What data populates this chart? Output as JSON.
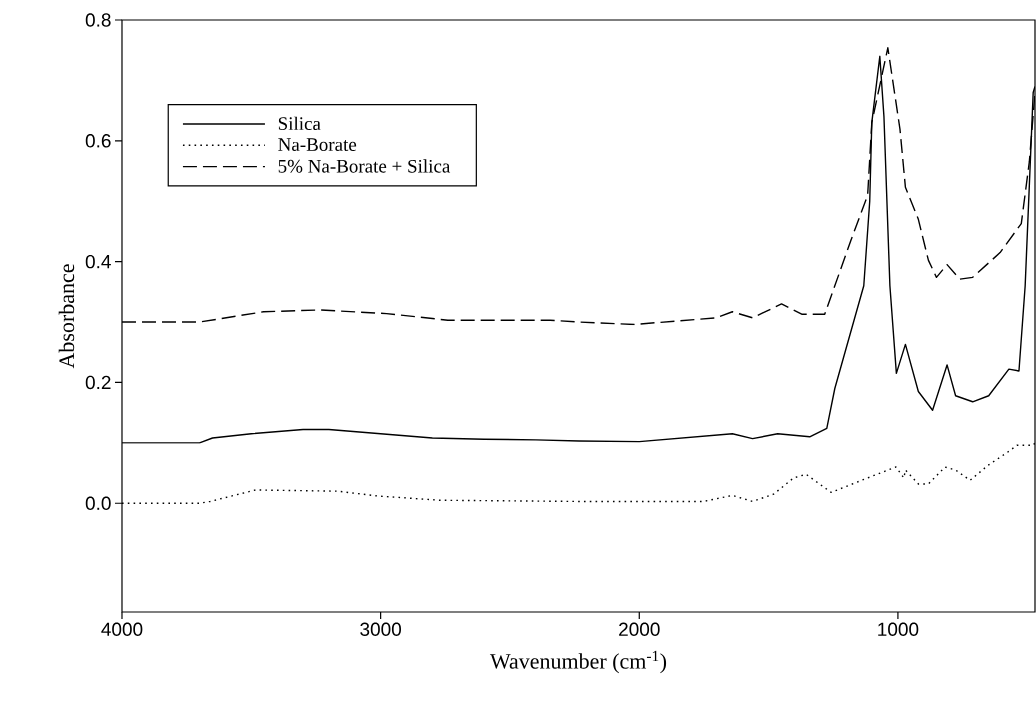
{
  "chart_data": {
    "type": "line",
    "xlabel": "Wavenumber (cm$^{-1}$)",
    "ylabel": "Absorbance",
    "xlim": [
      4000,
      470
    ],
    "ylim": [
      -0.18,
      0.8
    ],
    "xticks": [
      4000,
      3000,
      2000,
      1000
    ],
    "yticks": [
      {
        "value": 0,
        "label": "0.0"
      },
      {
        "value": 0.2,
        "label": "0.2"
      },
      {
        "value": 0.4,
        "label": "0.4"
      },
      {
        "value": 0.6,
        "label": "0.6"
      },
      {
        "value": 0.8,
        "label": "0.8"
      }
    ],
    "grid": false,
    "legend": "top left",
    "marker": "none",
    "series": [
      {
        "name": "Silica",
        "color": "#000000",
        "line_style": "solid",
        "x": [
          4000,
          3700,
          3650,
          3500,
          3300,
          3200,
          3000,
          2800,
          2600,
          2400,
          2233,
          2000,
          1640,
          1562,
          1465,
          1341,
          1275,
          1244,
          1198,
          1132,
          1109,
          1101,
          1070,
          1054,
          1031,
          1006,
          971,
          921,
          866,
          810,
          777,
          711,
          649,
          571,
          532,
          508,
          477,
          470
        ],
        "values": [
          0.1,
          0.1,
          0.108,
          0.115,
          0.122,
          0.122,
          0.115,
          0.108,
          0.106,
          0.105,
          0.103,
          0.102,
          0.115,
          0.107,
          0.115,
          0.11,
          0.124,
          0.19,
          0.26,
          0.36,
          0.5,
          0.63,
          0.74,
          0.64,
          0.36,
          0.215,
          0.263,
          0.185,
          0.154,
          0.229,
          0.178,
          0.168,
          0.178,
          0.222,
          0.219,
          0.36,
          0.68,
          0.69
        ]
      },
      {
        "name": "Na-Borate",
        "color": "#000000",
        "line_style": "dotted",
        "x": [
          4000,
          3700,
          3659,
          3484,
          3166,
          3010,
          2771,
          2233,
          1752,
          1640,
          1562,
          1481,
          1403,
          1355,
          1258,
          1117,
          1008,
          977,
          971,
          921,
          882,
          818,
          777,
          721,
          651,
          571,
          540,
          477,
          470
        ],
        "values": [
          0,
          0,
          0.003,
          0.022,
          0.02,
          0.012,
          0.005,
          0.003,
          0.003,
          0.013,
          0.003,
          0.015,
          0.042,
          0.048,
          0.018,
          0.042,
          0.06,
          0.042,
          0.055,
          0.032,
          0.032,
          0.06,
          0.055,
          0.038,
          0.063,
          0.086,
          0.096,
          0.096,
          0.1
        ]
      },
      {
        "name": "5% Na-Borate + Silica",
        "color": "#000000",
        "line_style": "dashed",
        "x": [
          4000,
          3700,
          3453,
          3233,
          2977,
          2740,
          2345,
          2233,
          2019,
          1703,
          1640,
          1562,
          1450,
          1372,
          1283,
          1244,
          1182,
          1117,
          1101,
          1039,
          992,
          971,
          921,
          882,
          851,
          810,
          761,
          711,
          605,
          523,
          492,
          470
        ],
        "values": [
          0.3,
          0.3,
          0.317,
          0.32,
          0.314,
          0.303,
          0.303,
          0.3,
          0.296,
          0.307,
          0.317,
          0.307,
          0.33,
          0.313,
          0.313,
          0.36,
          0.435,
          0.51,
          0.63,
          0.754,
          0.619,
          0.523,
          0.47,
          0.402,
          0.374,
          0.395,
          0.371,
          0.374,
          0.415,
          0.463,
          0.565,
          0.68
        ]
      }
    ]
  }
}
